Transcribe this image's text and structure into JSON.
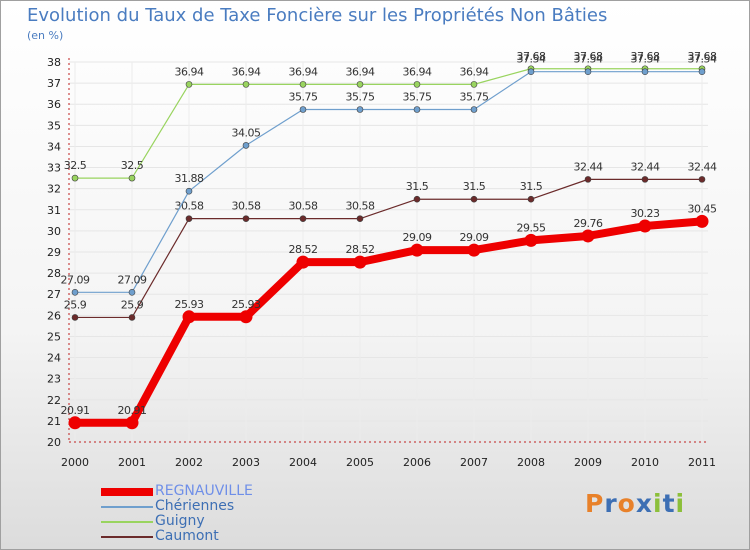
{
  "header": {
    "title": "Evolution du Taux de Taxe Foncière sur les Propriétés Non Bâties",
    "subtitle": "(en %)"
  },
  "chart_data": {
    "type": "line",
    "title": "Evolution du Taux de Taxe Foncière sur les Propriétés Non Bâties",
    "ylabel": "(en %)",
    "xlabel": "",
    "ylim": [
      20,
      38
    ],
    "yticks": [
      "20",
      "21",
      "22",
      "23",
      "24",
      "25",
      "26",
      "27",
      "28",
      "29",
      "30",
      "31",
      "32",
      "33",
      "34",
      "35",
      "36",
      "37",
      "38"
    ],
    "categories": [
      "2000",
      "2001",
      "2002",
      "2003",
      "2004",
      "2005",
      "2006",
      "2007",
      "2008",
      "2009",
      "2010",
      "2011"
    ],
    "grid": true,
    "legend_position": "bottom-left",
    "series": [
      {
        "name": "Caumont",
        "color": "#6b2b2b",
        "values": [
          25.9,
          25.9,
          30.58,
          30.58,
          30.58,
          30.58,
          31.5,
          31.5,
          31.5,
          32.44,
          32.44,
          32.44
        ],
        "labels": [
          "25.9",
          "25.9",
          "30.58",
          "30.58",
          "30.58",
          "30.58",
          "31.5",
          "31.5",
          "31.5",
          "32.44",
          "32.44",
          "32.44"
        ]
      },
      {
        "name": "Guigny",
        "color": "#99d45f",
        "values": [
          32.5,
          32.5,
          36.94,
          36.94,
          36.94,
          36.94,
          36.94,
          36.94,
          37.68,
          37.68,
          37.68,
          37.68
        ],
        "labels": [
          "32.5",
          "32.5",
          "36.94",
          "36.94",
          "36.94",
          "36.94",
          "36.94",
          "36.94",
          "37.68",
          "37.68",
          "37.68",
          "37.68"
        ]
      },
      {
        "name": "Chériennes",
        "color": "#6f9fcd",
        "values": [
          27.09,
          27.09,
          31.88,
          34.05,
          35.75,
          35.75,
          35.75,
          35.75,
          37.54,
          37.54,
          37.54,
          37.54
        ],
        "labels": [
          "27.09",
          "27.09",
          "31.88",
          "34.05",
          "35.75",
          "35.75",
          "35.75",
          "35.75",
          "37.54",
          "37.54",
          "37.54",
          "37.54"
        ]
      },
      {
        "name": "REGNAUVILLE",
        "color": "#ee0000",
        "values": [
          20.91,
          20.91,
          25.93,
          25.93,
          28.52,
          28.52,
          29.09,
          29.09,
          29.55,
          29.76,
          30.23,
          30.45
        ],
        "labels": [
          "20.91",
          "20.91",
          "25.93",
          "25.93",
          "28.52",
          "28.52",
          "29.09",
          "29.09",
          "29.55",
          "29.76",
          "30.23",
          "30.45"
        ]
      }
    ]
  },
  "legend": {
    "items": [
      {
        "label": "REGNAUVILLE",
        "color": "#ee0000",
        "text_color": "#6f8fe8"
      },
      {
        "label": "Chériennes",
        "color": "#6f9fcd",
        "text_color": "#3d6fb4"
      },
      {
        "label": "Guigny",
        "color": "#99d45f",
        "text_color": "#3d6fb4"
      },
      {
        "label": "Caumont",
        "color": "#6b2b2b",
        "text_color": "#3d6fb4"
      }
    ]
  },
  "logo": {
    "text": "Proxiti",
    "letters": [
      {
        "ch": "P",
        "color": "#e8812a"
      },
      {
        "ch": "r",
        "color": "#3d6fb4"
      },
      {
        "ch": "o",
        "color": "#e8812a"
      },
      {
        "ch": "x",
        "color": "#3d6fb4"
      },
      {
        "ch": "i",
        "color": "#8cbf3a"
      },
      {
        "ch": "t",
        "color": "#3d6fb4"
      },
      {
        "ch": "i",
        "color": "#8cbf3a"
      }
    ]
  }
}
